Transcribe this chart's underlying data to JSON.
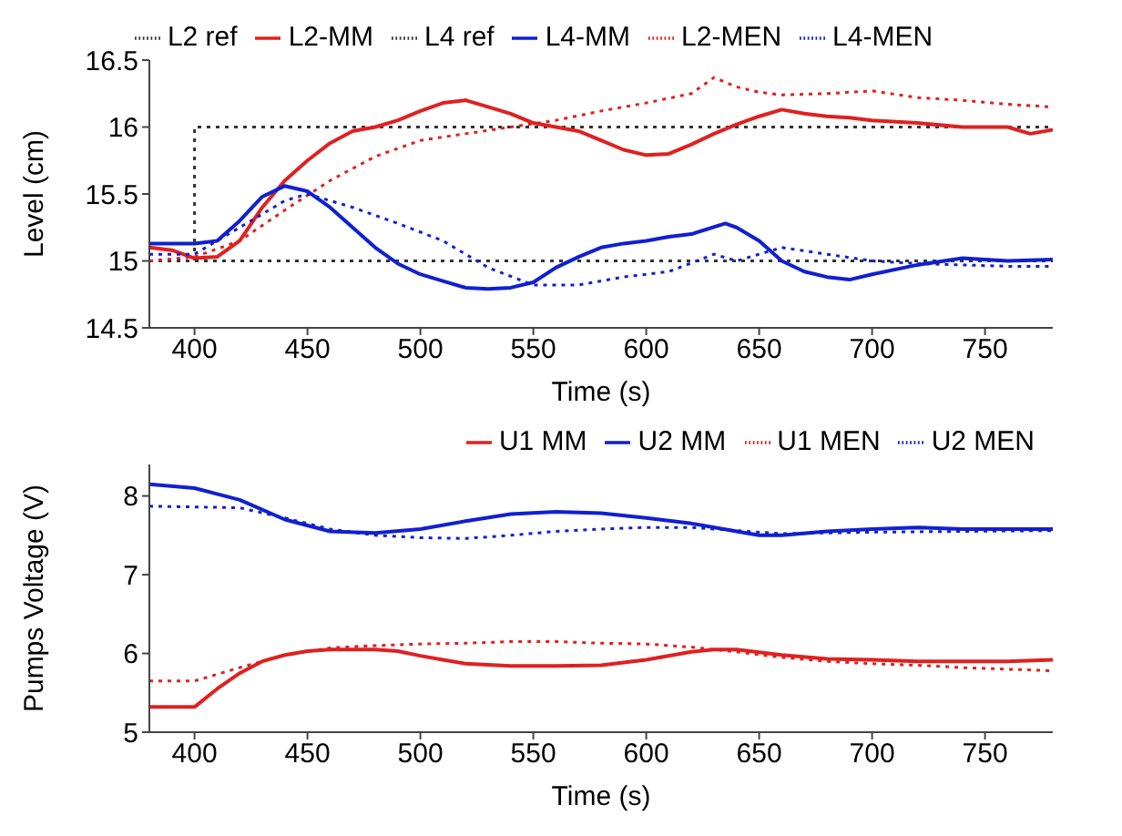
{
  "chart_data": [
    {
      "type": "line",
      "xlabel": "Time (s)",
      "ylabel": "Level (cm)",
      "xlim": [
        380,
        780
      ],
      "xticks": [
        400,
        450,
        500,
        550,
        600,
        650,
        700,
        750
      ],
      "ylim": [
        14.5,
        16.5
      ],
      "yticks": [
        14.5,
        15,
        15.5,
        16,
        16.5
      ],
      "legend": "top",
      "grid": false,
      "marker": "none",
      "series": [
        {
          "name": "L2 ref",
          "color": "#333333",
          "line_style": "dotted",
          "x": [
            380,
            400,
            400,
            780
          ],
          "values": [
            15,
            15,
            16,
            16
          ]
        },
        {
          "name": "L2-MM",
          "color": "#e02020",
          "line_style": "solid",
          "x": [
            380,
            390,
            400,
            410,
            420,
            430,
            440,
            450,
            460,
            470,
            480,
            490,
            500,
            510,
            520,
            530,
            540,
            550,
            560,
            570,
            580,
            590,
            600,
            610,
            620,
            630,
            640,
            650,
            660,
            670,
            680,
            690,
            700,
            720,
            740,
            760,
            770,
            780
          ],
          "values": [
            15.1,
            15.08,
            15.02,
            15.03,
            15.15,
            15.4,
            15.6,
            15.75,
            15.88,
            15.97,
            16.0,
            16.05,
            16.12,
            16.18,
            16.2,
            16.15,
            16.1,
            16.03,
            16.0,
            15.97,
            15.9,
            15.83,
            15.79,
            15.8,
            15.87,
            15.95,
            16.02,
            16.08,
            16.13,
            16.1,
            16.08,
            16.07,
            16.05,
            16.03,
            16.0,
            16.0,
            15.95,
            15.98
          ]
        },
        {
          "name": "L4 ref",
          "color": "#333333",
          "line_style": "dotted",
          "x": [
            380,
            780
          ],
          "values": [
            15,
            15
          ]
        },
        {
          "name": "L4-MM",
          "color": "#1020d0",
          "line_style": "solid",
          "x": [
            380,
            400,
            410,
            420,
            430,
            440,
            450,
            460,
            470,
            480,
            490,
            500,
            510,
            520,
            530,
            540,
            550,
            560,
            570,
            580,
            590,
            600,
            610,
            620,
            635,
            640,
            650,
            660,
            670,
            680,
            690,
            700,
            720,
            740,
            760,
            780
          ],
          "values": [
            15.13,
            15.13,
            15.15,
            15.3,
            15.48,
            15.56,
            15.52,
            15.4,
            15.25,
            15.1,
            14.98,
            14.9,
            14.85,
            14.8,
            14.79,
            14.8,
            14.84,
            14.95,
            15.03,
            15.1,
            15.13,
            15.15,
            15.18,
            15.2,
            15.28,
            15.25,
            15.15,
            15.0,
            14.92,
            14.88,
            14.86,
            14.9,
            14.97,
            15.02,
            15.0,
            15.01
          ]
        },
        {
          "name": "L2-MEN",
          "color": "#e02020",
          "line_style": "dotted",
          "x": [
            380,
            400,
            420,
            440,
            460,
            480,
            500,
            520,
            540,
            560,
            580,
            600,
            620,
            630,
            640,
            650,
            660,
            680,
            700,
            720,
            740,
            760,
            780
          ],
          "values": [
            15.0,
            15.03,
            15.15,
            15.38,
            15.6,
            15.78,
            15.9,
            15.95,
            16.0,
            16.05,
            16.12,
            16.18,
            16.25,
            16.37,
            16.3,
            16.26,
            16.24,
            16.25,
            16.27,
            16.22,
            16.2,
            16.17,
            16.15
          ]
        },
        {
          "name": "L4-MEN",
          "color": "#1020d0",
          "line_style": "dotted",
          "x": [
            380,
            400,
            420,
            440,
            450,
            470,
            490,
            510,
            530,
            550,
            570,
            590,
            610,
            630,
            640,
            660,
            680,
            700,
            720,
            740,
            760,
            780
          ],
          "values": [
            15.05,
            15.05,
            15.25,
            15.45,
            15.5,
            15.4,
            15.28,
            15.15,
            14.95,
            14.82,
            14.82,
            14.88,
            14.92,
            15.05,
            15.0,
            15.1,
            15.05,
            15.0,
            14.98,
            14.97,
            14.96,
            14.96
          ]
        }
      ]
    },
    {
      "type": "line",
      "xlabel": "Time (s)",
      "ylabel": "Pumps Voltage (V)",
      "xlim": [
        380,
        780
      ],
      "xticks": [
        400,
        450,
        500,
        550,
        600,
        650,
        700,
        750
      ],
      "ylim": [
        5,
        8.4
      ],
      "yticks": [
        5,
        6,
        7,
        8
      ],
      "legend": "top right",
      "grid": false,
      "marker": "none",
      "series": [
        {
          "name": "U1 MM",
          "color": "#e02020",
          "line_style": "solid",
          "x": [
            380,
            400,
            410,
            420,
            430,
            440,
            450,
            460,
            480,
            490,
            500,
            510,
            520,
            540,
            560,
            580,
            600,
            620,
            630,
            640,
            660,
            680,
            700,
            720,
            740,
            760,
            780
          ],
          "values": [
            5.32,
            5.32,
            5.55,
            5.75,
            5.9,
            5.98,
            6.03,
            6.05,
            6.05,
            6.03,
            5.97,
            5.92,
            5.87,
            5.84,
            5.84,
            5.85,
            5.92,
            6.02,
            6.05,
            6.05,
            5.98,
            5.93,
            5.92,
            5.9,
            5.9,
            5.9,
            5.92
          ]
        },
        {
          "name": "U2 MM",
          "color": "#1020d0",
          "line_style": "solid",
          "x": [
            380,
            400,
            420,
            440,
            460,
            480,
            500,
            520,
            540,
            560,
            580,
            600,
            620,
            640,
            650,
            660,
            680,
            700,
            720,
            740,
            760,
            780
          ],
          "values": [
            8.15,
            8.1,
            7.95,
            7.7,
            7.55,
            7.53,
            7.58,
            7.68,
            7.77,
            7.8,
            7.78,
            7.72,
            7.65,
            7.55,
            7.5,
            7.5,
            7.55,
            7.58,
            7.6,
            7.58,
            7.58,
            7.58
          ]
        },
        {
          "name": "U1 MEN",
          "color": "#e02020",
          "line_style": "dotted",
          "x": [
            380,
            400,
            420,
            440,
            460,
            480,
            500,
            520,
            540,
            560,
            580,
            600,
            620,
            640,
            660,
            680,
            700,
            720,
            740,
            760,
            780
          ],
          "values": [
            5.65,
            5.65,
            5.82,
            5.98,
            6.07,
            6.1,
            6.12,
            6.13,
            6.15,
            6.15,
            6.13,
            6.12,
            6.08,
            6.02,
            5.95,
            5.9,
            5.87,
            5.85,
            5.82,
            5.8,
            5.78
          ]
        },
        {
          "name": "U2 MEN",
          "color": "#1020d0",
          "line_style": "dotted",
          "x": [
            380,
            420,
            440,
            460,
            480,
            500,
            520,
            540,
            560,
            580,
            600,
            620,
            640,
            660,
            680,
            700,
            740,
            780
          ],
          "values": [
            7.87,
            7.85,
            7.72,
            7.58,
            7.5,
            7.47,
            7.46,
            7.5,
            7.55,
            7.58,
            7.6,
            7.6,
            7.56,
            7.52,
            7.53,
            7.54,
            7.55,
            7.56
          ]
        }
      ]
    }
  ]
}
